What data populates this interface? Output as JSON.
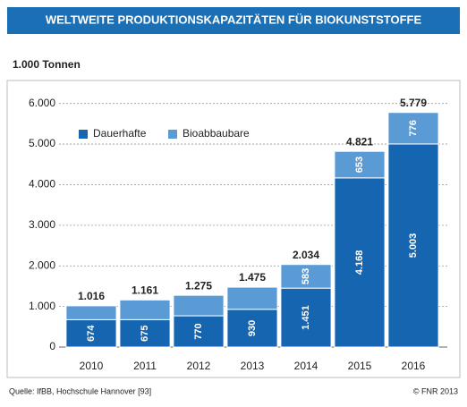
{
  "chart_data": {
    "type": "stacked-bar",
    "title": "WELTWEITE PRODUKTIONSKAPAZITÄTEN FÜR BIOKUNSTSTOFFE",
    "y_label": "1.000 Tonnen",
    "categories": [
      "2010",
      "2011",
      "2012",
      "2013",
      "2014",
      "2015",
      "2016"
    ],
    "series": [
      {
        "name": "Dauerhafte",
        "color": "#1565b0",
        "values": [
          674,
          675,
          770,
          930,
          1451,
          4168,
          5003
        ],
        "value_labels": [
          "674",
          "675",
          "770",
          "930",
          "1.451",
          "4.168",
          "5.003"
        ]
      },
      {
        "name": "Bioabbaubare",
        "color": "#5b9bd5",
        "values": [
          342,
          486,
          505,
          545,
          583,
          653,
          776
        ],
        "value_labels": [
          null,
          null,
          null,
          null,
          "583",
          "653",
          "776"
        ]
      }
    ],
    "totals": {
      "values": [
        1016,
        1161,
        1275,
        1475,
        2034,
        4821,
        5779
      ],
      "value_labels": [
        "1.016",
        "1.161",
        "1.275",
        "1.475",
        "2.034",
        "4.821",
        "5.779"
      ]
    },
    "ylim": [
      0,
      6500
    ],
    "yticks": [
      0,
      {
        "value": 1000,
        "label": "1.000"
      },
      {
        "value": 2000,
        "label": "2.000"
      },
      {
        "value": 3000,
        "label": "3.000"
      },
      {
        "value": 4000,
        "label": "4.000"
      },
      {
        "value": 5000,
        "label": "5.000"
      },
      {
        "value": 6000,
        "label": "6.000"
      }
    ],
    "grid": true,
    "legend": "upper left",
    "source": "Quelle: IfBB, Hochschule Hannover [93]",
    "credit": "© FNR 2013"
  }
}
